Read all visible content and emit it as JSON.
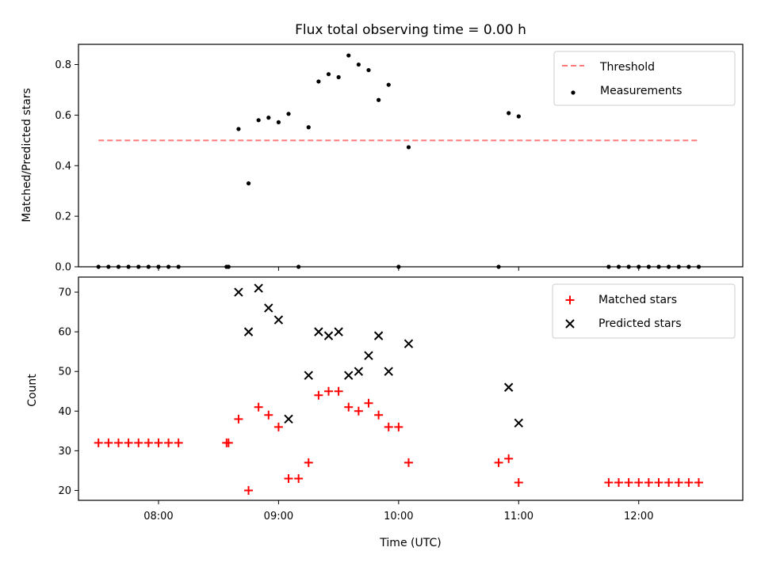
{
  "chart_data": [
    {
      "type": "scatter",
      "title": "Flux total observing time = 0.00 h",
      "xlabel": "",
      "ylabel": "Matched/Predicted stars",
      "xlim": [
        "07:20",
        "12:52"
      ],
      "ylim": [
        0,
        0.88
      ],
      "yticks": [
        "0.0",
        "0.2",
        "0.4",
        "0.6",
        "0.8"
      ],
      "legend_position": "top-right",
      "grid": false,
      "series": [
        {
          "name": "Threshold",
          "kind": "dashed-line",
          "color": "#ff7777",
          "points": [
            [
              "07:30",
              0.5
            ],
            [
              "12:30",
              0.5
            ]
          ]
        },
        {
          "name": "Measurements",
          "kind": "dot",
          "color": "#000000",
          "points": [
            [
              "07:30",
              0.0
            ],
            [
              "07:35",
              0.0
            ],
            [
              "07:40",
              0.0
            ],
            [
              "07:45",
              0.0
            ],
            [
              "07:50",
              0.0
            ],
            [
              "07:55",
              0.0
            ],
            [
              "08:00",
              0.0
            ],
            [
              "08:05",
              0.0
            ],
            [
              "08:10",
              0.0
            ],
            [
              "08:34",
              0.0
            ],
            [
              "08:35",
              0.0
            ],
            [
              "08:40",
              0.545
            ],
            [
              "08:45",
              0.33
            ],
            [
              "08:50",
              0.58
            ],
            [
              "08:55",
              0.59
            ],
            [
              "09:00",
              0.572
            ],
            [
              "09:05",
              0.605
            ],
            [
              "09:10",
              0.0
            ],
            [
              "09:15",
              0.552
            ],
            [
              "09:20",
              0.733
            ],
            [
              "09:25",
              0.762
            ],
            [
              "09:30",
              0.75
            ],
            [
              "09:35",
              0.836
            ],
            [
              "09:40",
              0.8
            ],
            [
              "09:45",
              0.778
            ],
            [
              "09:50",
              0.66
            ],
            [
              "09:55",
              0.72
            ],
            [
              "10:00",
              0.0
            ],
            [
              "10:05",
              0.473
            ],
            [
              "10:50",
              0.0
            ],
            [
              "10:55",
              0.608
            ],
            [
              "11:00",
              0.595
            ],
            [
              "11:45",
              0.0
            ],
            [
              "11:50",
              0.0
            ],
            [
              "11:55",
              0.0
            ],
            [
              "12:00",
              0.0
            ],
            [
              "12:05",
              0.0
            ],
            [
              "12:10",
              0.0
            ],
            [
              "12:15",
              0.0
            ],
            [
              "12:20",
              0.0
            ],
            [
              "12:25",
              0.0
            ],
            [
              "12:30",
              0.0
            ]
          ]
        }
      ]
    },
    {
      "type": "scatter",
      "title": "",
      "xlabel": "Time (UTC)",
      "ylabel": "Count",
      "xlim": [
        "07:20",
        "12:52"
      ],
      "xticks": [
        "08:00",
        "09:00",
        "10:00",
        "11:00",
        "12:00"
      ],
      "ylim": [
        17.5,
        73.8
      ],
      "yticks": [
        "20",
        "30",
        "40",
        "50",
        "60",
        "70"
      ],
      "legend_position": "top-right",
      "grid": false,
      "series": [
        {
          "name": "Matched stars",
          "kind": "plus",
          "color": "#ff0000",
          "points": [
            [
              "07:30",
              32
            ],
            [
              "07:35",
              32
            ],
            [
              "07:40",
              32
            ],
            [
              "07:45",
              32
            ],
            [
              "07:50",
              32
            ],
            [
              "07:55",
              32
            ],
            [
              "08:00",
              32
            ],
            [
              "08:05",
              32
            ],
            [
              "08:10",
              32
            ],
            [
              "08:34",
              32
            ],
            [
              "08:35",
              32
            ],
            [
              "08:40",
              38
            ],
            [
              "08:45",
              20
            ],
            [
              "08:50",
              41
            ],
            [
              "08:55",
              39
            ],
            [
              "09:00",
              36
            ],
            [
              "09:05",
              23
            ],
            [
              "09:10",
              23
            ],
            [
              "09:15",
              27
            ],
            [
              "09:20",
              44
            ],
            [
              "09:25",
              45
            ],
            [
              "09:30",
              45
            ],
            [
              "09:35",
              41
            ],
            [
              "09:40",
              40
            ],
            [
              "09:45",
              42
            ],
            [
              "09:50",
              39
            ],
            [
              "09:55",
              36
            ],
            [
              "10:00",
              36
            ],
            [
              "10:05",
              27
            ],
            [
              "10:50",
              27
            ],
            [
              "10:55",
              28
            ],
            [
              "11:00",
              22
            ],
            [
              "11:45",
              22
            ],
            [
              "11:50",
              22
            ],
            [
              "11:55",
              22
            ],
            [
              "12:00",
              22
            ],
            [
              "12:05",
              22
            ],
            [
              "12:10",
              22
            ],
            [
              "12:15",
              22
            ],
            [
              "12:20",
              22
            ],
            [
              "12:25",
              22
            ],
            [
              "12:30",
              22
            ]
          ]
        },
        {
          "name": "Predicted stars",
          "kind": "x",
          "color": "#000000",
          "points": [
            [
              "08:40",
              70
            ],
            [
              "08:45",
              60
            ],
            [
              "08:50",
              71
            ],
            [
              "08:55",
              66
            ],
            [
              "09:00",
              63
            ],
            [
              "09:05",
              38
            ],
            [
              "09:15",
              49
            ],
            [
              "09:20",
              60
            ],
            [
              "09:25",
              59
            ],
            [
              "09:30",
              60
            ],
            [
              "09:35",
              49
            ],
            [
              "09:40",
              50
            ],
            [
              "09:45",
              54
            ],
            [
              "09:50",
              59
            ],
            [
              "09:55",
              50
            ],
            [
              "10:05",
              57
            ],
            [
              "10:55",
              46
            ],
            [
              "11:00",
              37
            ]
          ]
        }
      ]
    }
  ]
}
